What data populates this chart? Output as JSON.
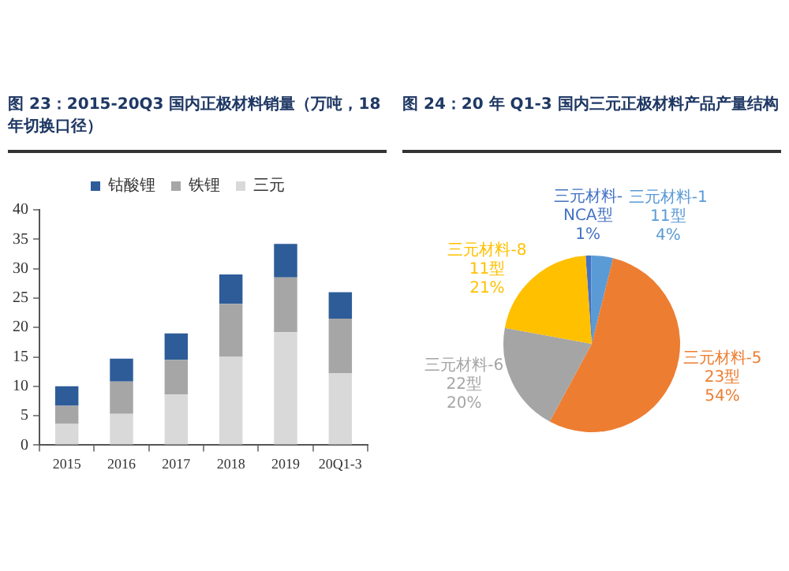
{
  "chart_data": [
    {
      "type": "bar",
      "title": "图 23：2015-20Q3 国内正极材料销量（万吨，18 年切换口径）",
      "categories": [
        "2015",
        "2016",
        "2017",
        "2018",
        "2019",
        "20Q1-3"
      ],
      "stacked": true,
      "legend": "top",
      "grid": false,
      "ylim": [
        0,
        40
      ],
      "yticks": [
        0,
        5,
        10,
        15,
        20,
        25,
        30,
        35,
        40
      ],
      "series": [
        {
          "name": "三元",
          "color": "#d9d9d9",
          "values": [
            3.6,
            5.3,
            8.6,
            15,
            19.2,
            12.2
          ]
        },
        {
          "name": "铁锂",
          "color": "#a6a6a6",
          "values": [
            3.1,
            5.5,
            5.9,
            9,
            9.3,
            9.3
          ]
        },
        {
          "name": "钴酸锂",
          "color": "#2e5c99",
          "values": [
            3.3,
            3.9,
            4.5,
            5,
            5.7,
            4.5
          ]
        }
      ]
    },
    {
      "type": "pie",
      "title": "图 24：20 年 Q1-3 国内三元正极材料产品产量结构",
      "categories": [
        "三元材料-NCA型",
        "三元材料-111型",
        "三元材料-523型",
        "三元材料-622型",
        "三元材料-811型"
      ],
      "values": [
        1,
        4,
        54,
        20,
        21
      ],
      "colors": [
        "#4472c4",
        "#5b9bd5",
        "#ed7d31",
        "#a5a5a5",
        "#ffc000"
      ],
      "value_labels": [
        "1%",
        "4%",
        "54%",
        "20%",
        "21%"
      ]
    }
  ]
}
